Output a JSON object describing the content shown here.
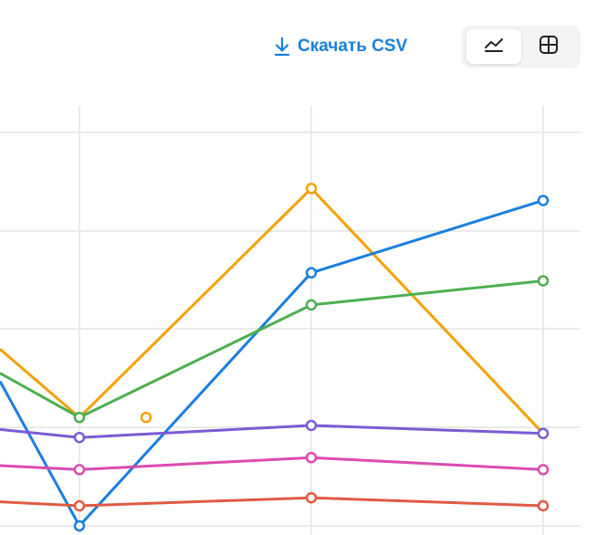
{
  "toolbar": {
    "download_label": "Скачать CSV",
    "download_icon": "download-icon",
    "view_toggle": {
      "active": "line-chart",
      "options": [
        "line-chart-icon",
        "table-icon"
      ]
    }
  },
  "colors": {
    "accent": "#1a7fe0",
    "toggle_bg": "#f2f3f5",
    "grid": "#e4e4e4"
  },
  "chart_data": {
    "type": "line",
    "grid": true,
    "x": [
      0,
      1,
      2,
      3
    ],
    "series": [
      {
        "color": "#f5a000",
        "values": [
          44,
          27,
          84,
          23
        ]
      },
      {
        "color": "#1a7fe0",
        "values": [
          36,
          0,
          63,
          81
        ]
      },
      {
        "color": "#4caf50",
        "values": [
          38,
          27,
          55,
          61
        ]
      },
      {
        "color": "#7b5bd4",
        "values": [
          24,
          22,
          25,
          23
        ]
      },
      {
        "color": "#d94bb0",
        "values": [
          15,
          14,
          17,
          14
        ]
      },
      {
        "color": "#e05a44",
        "values": [
          6,
          5,
          7,
          5
        ]
      }
    ]
  }
}
